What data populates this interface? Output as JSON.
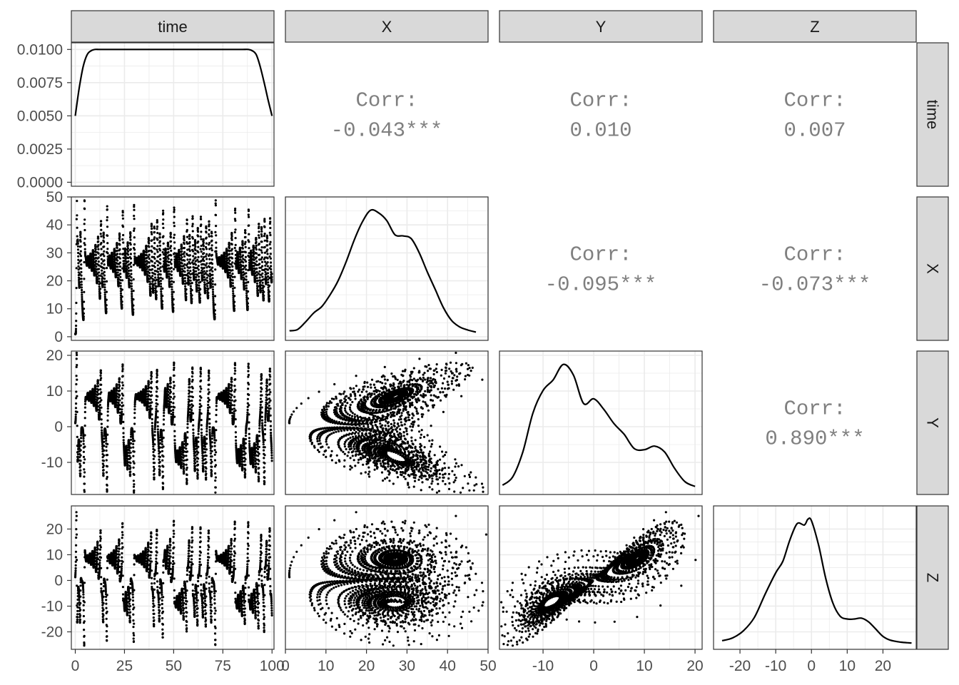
{
  "chart_data": {
    "type": "scatter",
    "variables": [
      "time",
      "X",
      "Y",
      "Z"
    ],
    "strip_labels": {
      "top": [
        "time",
        "X",
        "Y",
        "Z"
      ],
      "right": [
        "time",
        "X",
        "Y",
        "Z"
      ]
    },
    "axes": {
      "x": [
        {
          "variable": "time",
          "range": [
            -2,
            101
          ],
          "ticks": [
            0,
            25,
            50,
            75,
            100
          ],
          "tick_labels": [
            "0",
            "25",
            "50",
            "75",
            "100"
          ]
        },
        {
          "variable": "X",
          "range": [
            0,
            50
          ],
          "ticks": [
            0,
            10,
            20,
            30,
            40,
            50
          ],
          "tick_labels": [
            "0",
            "10",
            "20",
            "30",
            "40",
            "50"
          ]
        },
        {
          "variable": "Y",
          "range": [
            -18.6,
            21.4
          ],
          "ticks": [
            -10,
            0,
            10,
            20
          ],
          "tick_labels": [
            "-10",
            "0",
            "10",
            "20"
          ]
        },
        {
          "variable": "Z",
          "range": [
            -27.4,
            29.3
          ],
          "ticks": [
            -20,
            -10,
            0,
            10,
            20
          ],
          "tick_labels": [
            "-20",
            "-10",
            "0",
            "10",
            "20"
          ]
        }
      ],
      "y": [
        {
          "variable": "time",
          "range": [
            -0.0003,
            0.0105
          ],
          "ticks": [
            0,
            0.0025,
            0.005,
            0.0075,
            0.01
          ],
          "tick_labels": [
            "0.0000",
            "0.0025",
            "0.0050",
            "0.0075",
            "0.0100"
          ]
        },
        {
          "variable": "X",
          "range": [
            -1.3,
            50
          ],
          "ticks": [
            0,
            10,
            20,
            30,
            40,
            50
          ],
          "tick_labels": [
            "0",
            "10",
            "20",
            "30",
            "40",
            "50"
          ]
        },
        {
          "variable": "Y",
          "range": [
            -19,
            21.2
          ],
          "ticks": [
            -10,
            0,
            10,
            20
          ],
          "tick_labels": [
            "-10",
            "0",
            "10",
            "20"
          ]
        },
        {
          "variable": "Z",
          "range": [
            -26.8,
            29
          ],
          "ticks": [
            -20,
            -10,
            0,
            10,
            20
          ],
          "tick_labels": [
            "-20",
            "-10",
            "0",
            "10",
            "20"
          ]
        }
      ]
    },
    "correlations": [
      {
        "row": "time",
        "col": "X",
        "label": "Corr:",
        "value": "-0.043***"
      },
      {
        "row": "time",
        "col": "Y",
        "label": "Corr:",
        "value": "0.010"
      },
      {
        "row": "time",
        "col": "Z",
        "label": "Corr:",
        "value": "0.007"
      },
      {
        "row": "X",
        "col": "Y",
        "label": "Corr:",
        "value": "-0.095***"
      },
      {
        "row": "X",
        "col": "Z",
        "label": "Corr:",
        "value": "-0.073***"
      },
      {
        "row": "Y",
        "col": "Z",
        "label": "Corr:",
        "value": "0.890***"
      }
    ],
    "densities": {
      "time": {
        "x": [
          0,
          2,
          4,
          6,
          8,
          10,
          12,
          15,
          20,
          50,
          80,
          85,
          88,
          90,
          92,
          94,
          96,
          98,
          100
        ],
        "y": [
          0.005,
          0.0071,
          0.0087,
          0.0096,
          0.0099,
          0.01,
          0.01,
          0.01,
          0.01,
          0.01,
          0.01,
          0.01,
          0.01,
          0.0099,
          0.0096,
          0.0087,
          0.0075,
          0.0062,
          0.005
        ]
      },
      "X": {
        "x": [
          1,
          3,
          5,
          7,
          9,
          11,
          13,
          15,
          17,
          19,
          21,
          23,
          25,
          27,
          29,
          31,
          33,
          35,
          37,
          39,
          41,
          43,
          45,
          47
        ],
        "y": [
          0.0015,
          0.002,
          0.005,
          0.0085,
          0.011,
          0.0155,
          0.021,
          0.0285,
          0.037,
          0.044,
          0.0485,
          0.0475,
          0.0445,
          0.039,
          0.0385,
          0.0375,
          0.032,
          0.0245,
          0.0175,
          0.0105,
          0.0055,
          0.003,
          0.0018,
          0.001
        ]
      },
      "Y": {
        "x": [
          -18,
          -16,
          -14,
          -12,
          -10,
          -8,
          -6,
          -4,
          -2,
          0,
          2,
          4,
          6,
          8,
          10,
          12,
          14,
          16,
          18,
          20
        ],
        "y": [
          0.0015,
          0.005,
          0.0155,
          0.032,
          0.0415,
          0.046,
          0.0525,
          0.048,
          0.036,
          0.038,
          0.0335,
          0.0275,
          0.023,
          0.017,
          0.0165,
          0.018,
          0.0155,
          0.0085,
          0.003,
          0.001
        ]
      },
      "Z": {
        "x": [
          -25,
          -22,
          -19,
          -16,
          -13,
          -10,
          -8,
          -6,
          -4,
          -2,
          -1,
          0,
          2,
          4,
          6,
          8,
          10,
          12,
          14,
          16,
          18,
          20,
          22,
          25,
          28
        ],
        "y": [
          0.001,
          0.002,
          0.0045,
          0.009,
          0.017,
          0.0245,
          0.0285,
          0.036,
          0.0415,
          0.041,
          0.043,
          0.0425,
          0.034,
          0.0225,
          0.014,
          0.0095,
          0.0085,
          0.0085,
          0.0088,
          0.0075,
          0.005,
          0.0025,
          0.0012,
          0.0005,
          0.0002
        ]
      }
    },
    "grid": true,
    "colors": {
      "points": "#000000",
      "line": "#000000",
      "strip_fill": "#d9d9d9",
      "grid": "#ebebeb",
      "correlation_text": "#7f7f7f",
      "tick_text": "#4d4d4d"
    }
  }
}
